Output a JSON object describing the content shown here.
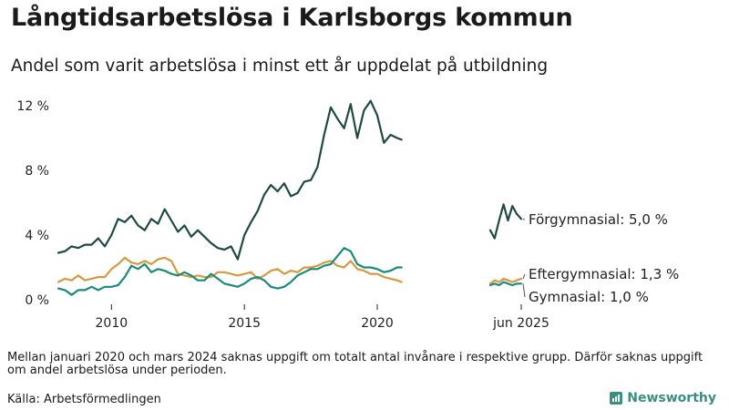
{
  "title": "Långtidsarbetslösa i Karlsborgs kommun",
  "subtitle": "Andel som varit arbetslösa i minst ett år uppdelat på utbildning",
  "note": "Mellan januari 2020 och mars 2024 saknas uppgift om totalt antal invånare i respektive grupp. Därför saknas uppgift om andel arbetslösa under perioden.",
  "source": "Källa: Arbetsförmedlingen",
  "brand": "Newsworthy",
  "colors": {
    "forgymnasial": "#1f4a43",
    "eftergymnasial": "#d39a45",
    "gymnasial": "#1a8a7a",
    "axis": "#222222",
    "brand": "#3a8f83"
  },
  "chart_data": {
    "type": "line",
    "x_axis": {
      "type": "date",
      "range": [
        "2008-01",
        "2025-06"
      ],
      "tick_labels": [
        "2010",
        "2015",
        "2020",
        "jun 2025"
      ],
      "tick_positions": [
        "2010-01",
        "2015-01",
        "2020-01",
        "2025-06"
      ]
    },
    "y_axis": {
      "range": [
        0,
        12
      ],
      "ticks": [
        0,
        4,
        8,
        12
      ],
      "tick_labels": [
        "0 %",
        "4 %",
        "8 %",
        "12 %"
      ]
    },
    "grid": false,
    "legend": "direct labels at line ends",
    "series": [
      {
        "name": "Förgymnasial",
        "end_label": "Förgymnasial: 5,0 %",
        "color": "#1f4a43",
        "segments": [
          {
            "x": [
              "2008-01",
              "2008-04",
              "2008-07",
              "2008-10",
              "2009-01",
              "2009-04",
              "2009-07",
              "2009-10",
              "2010-01",
              "2010-04",
              "2010-07",
              "2010-10",
              "2011-01",
              "2011-04",
              "2011-07",
              "2011-10",
              "2012-01",
              "2012-04",
              "2012-07",
              "2012-10",
              "2013-01",
              "2013-04",
              "2013-07",
              "2013-10",
              "2014-01",
              "2014-04",
              "2014-07",
              "2014-10",
              "2015-01",
              "2015-04",
              "2015-07",
              "2015-10",
              "2016-01",
              "2016-04",
              "2016-07",
              "2016-10",
              "2017-01",
              "2017-04",
              "2017-07",
              "2017-10",
              "2018-01",
              "2018-04",
              "2018-07",
              "2018-10",
              "2019-01",
              "2019-04",
              "2019-07",
              "2019-10",
              "2020-01",
              "2020-04",
              "2020-07",
              "2020-10",
              "2020-12"
            ],
            "y": [
              2.9,
              3.0,
              3.3,
              3.2,
              3.4,
              3.4,
              3.8,
              3.3,
              4.0,
              5.0,
              4.8,
              5.2,
              4.6,
              4.3,
              5.0,
              4.7,
              5.6,
              4.9,
              4.2,
              4.6,
              3.9,
              4.3,
              3.9,
              3.5,
              3.2,
              3.1,
              3.3,
              2.5,
              4.0,
              4.8,
              5.5,
              6.5,
              7.1,
              6.7,
              7.2,
              6.4,
              6.6,
              7.3,
              7.4,
              8.2,
              10.2,
              11.9,
              11.2,
              10.6,
              12.1,
              10.0,
              11.7,
              12.3,
              11.4,
              9.7,
              10.2,
              10.0,
              9.9
            ]
          },
          {
            "x": [
              "2024-04",
              "2024-06",
              "2024-08",
              "2024-10",
              "2024-12",
              "2025-02",
              "2025-04",
              "2025-06"
            ],
            "y": [
              4.3,
              3.8,
              4.9,
              5.9,
              4.9,
              5.8,
              5.3,
              5.0
            ]
          }
        ]
      },
      {
        "name": "Eftergymnasial",
        "end_label": "Eftergymnasial: 1,3 %",
        "color": "#d39a45",
        "segments": [
          {
            "x": [
              "2008-01",
              "2008-04",
              "2008-07",
              "2008-10",
              "2009-01",
              "2009-04",
              "2009-07",
              "2009-10",
              "2010-01",
              "2010-04",
              "2010-07",
              "2010-10",
              "2011-01",
              "2011-04",
              "2011-07",
              "2011-10",
              "2012-01",
              "2012-04",
              "2012-07",
              "2012-10",
              "2013-01",
              "2013-04",
              "2013-07",
              "2013-10",
              "2014-01",
              "2014-04",
              "2014-07",
              "2014-10",
              "2015-01",
              "2015-04",
              "2015-07",
              "2015-10",
              "2016-01",
              "2016-04",
              "2016-07",
              "2016-10",
              "2017-01",
              "2017-04",
              "2017-07",
              "2017-10",
              "2018-01",
              "2018-04",
              "2018-07",
              "2018-10",
              "2019-01",
              "2019-04",
              "2019-07",
              "2019-10",
              "2020-01",
              "2020-04",
              "2020-07",
              "2020-10",
              "2020-12"
            ],
            "y": [
              1.1,
              1.3,
              1.2,
              1.5,
              1.2,
              1.3,
              1.4,
              1.4,
              1.9,
              2.2,
              2.6,
              2.3,
              2.2,
              2.4,
              2.2,
              2.5,
              2.6,
              2.4,
              1.6,
              1.5,
              1.4,
              1.5,
              1.4,
              1.4,
              1.7,
              1.7,
              1.6,
              1.5,
              1.6,
              1.7,
              1.3,
              1.5,
              1.8,
              1.9,
              1.6,
              1.8,
              1.7,
              2.0,
              2.0,
              2.1,
              2.3,
              2.4,
              2.1,
              2.0,
              2.4,
              1.9,
              1.8,
              1.6,
              1.6,
              1.4,
              1.3,
              1.2,
              1.1
            ]
          },
          {
            "x": [
              "2024-04",
              "2024-06",
              "2024-08",
              "2024-10",
              "2024-12",
              "2025-02",
              "2025-04",
              "2025-06"
            ],
            "y": [
              1.0,
              1.2,
              1.1,
              1.3,
              1.2,
              1.1,
              1.2,
              1.3
            ]
          }
        ]
      },
      {
        "name": "Gymnasial",
        "end_label": "Gymnasial: 1,0 %",
        "color": "#1a8a7a",
        "segments": [
          {
            "x": [
              "2008-01",
              "2008-04",
              "2008-07",
              "2008-10",
              "2009-01",
              "2009-04",
              "2009-07",
              "2009-10",
              "2010-01",
              "2010-04",
              "2010-07",
              "2010-10",
              "2011-01",
              "2011-04",
              "2011-07",
              "2011-10",
              "2012-01",
              "2012-04",
              "2012-07",
              "2012-10",
              "2013-01",
              "2013-04",
              "2013-07",
              "2013-10",
              "2014-01",
              "2014-04",
              "2014-07",
              "2014-10",
              "2015-01",
              "2015-04",
              "2015-07",
              "2015-10",
              "2016-01",
              "2016-04",
              "2016-07",
              "2016-10",
              "2017-01",
              "2017-04",
              "2017-07",
              "2017-10",
              "2018-01",
              "2018-04",
              "2018-07",
              "2018-10",
              "2019-01",
              "2019-04",
              "2019-07",
              "2019-10",
              "2020-01",
              "2020-04",
              "2020-07",
              "2020-10",
              "2020-12"
            ],
            "y": [
              0.7,
              0.6,
              0.3,
              0.6,
              0.6,
              0.8,
              0.6,
              0.8,
              0.8,
              0.9,
              1.4,
              2.1,
              1.9,
              2.2,
              1.7,
              1.9,
              1.8,
              1.6,
              1.5,
              1.7,
              1.5,
              1.2,
              1.2,
              1.6,
              1.3,
              1.0,
              0.9,
              0.8,
              1.0,
              1.3,
              1.4,
              1.2,
              0.8,
              0.7,
              0.8,
              1.1,
              1.5,
              1.7,
              1.9,
              1.9,
              2.1,
              2.2,
              2.7,
              3.2,
              3.0,
              2.2,
              2.0,
              2.0,
              1.9,
              1.7,
              1.8,
              2.0,
              2.0
            ]
          },
          {
            "x": [
              "2024-04",
              "2024-06",
              "2024-08",
              "2024-10",
              "2024-12",
              "2025-02",
              "2025-04",
              "2025-06"
            ],
            "y": [
              0.9,
              1.0,
              0.9,
              1.1,
              1.0,
              0.9,
              1.0,
              1.0
            ]
          }
        ]
      }
    ]
  }
}
